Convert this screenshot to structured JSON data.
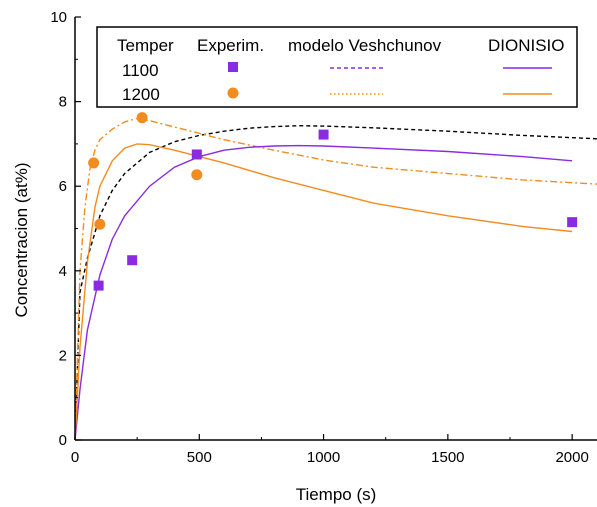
{
  "chart_data": {
    "type": "line",
    "xlabel": "Tiempo (s)",
    "ylabel": "Concentracion (at%)",
    "xlim": [
      0,
      2100
    ],
    "ylim": [
      0,
      10
    ],
    "x_ticks": [
      0,
      500,
      1000,
      1500,
      2000
    ],
    "y_ticks": [
      0,
      2,
      4,
      6,
      8,
      10
    ],
    "legend": {
      "placement": "top",
      "headers": [
        "Temper",
        "Experim.",
        "modelo Veshchunov",
        "DIONISIO"
      ],
      "rows": [
        "1100",
        "1200"
      ]
    },
    "colors": {
      "t1100": "#8a2be2",
      "t1200": "#f28c1e",
      "model_1100_curve": "#000000"
    },
    "series": [
      {
        "name": "1100 Experim.",
        "kind": "scatter",
        "marker": "square",
        "color": "#8a2be2",
        "x": [
          95,
          230,
          490,
          1000,
          2000
        ],
        "y": [
          3.65,
          4.25,
          6.75,
          7.22,
          5.15
        ]
      },
      {
        "name": "1200 Experim.",
        "kind": "scatter",
        "marker": "circle",
        "color": "#f28c1e",
        "x": [
          75,
          100,
          270,
          490
        ],
        "y": [
          6.55,
          5.1,
          7.62,
          6.27
        ]
      },
      {
        "name": "1100 modelo Veshchunov",
        "kind": "line",
        "style": "dashed",
        "color": "#000000",
        "x": [
          0,
          20,
          50,
          100,
          150,
          200,
          300,
          400,
          500,
          600,
          700,
          800,
          900,
          1000,
          1200,
          1500,
          1800,
          2100
        ],
        "y": [
          0.0,
          3.5,
          4.3,
          5.3,
          5.9,
          6.3,
          6.8,
          7.05,
          7.2,
          7.3,
          7.37,
          7.41,
          7.43,
          7.42,
          7.38,
          7.3,
          7.2,
          7.12
        ]
      },
      {
        "name": "1200 modelo Veshchunov",
        "kind": "line",
        "style": "dash-dot",
        "color": "#f28c1e",
        "x": [
          0,
          20,
          40,
          60,
          80,
          100,
          150,
          200,
          250,
          300,
          400,
          500,
          600,
          800,
          1000,
          1200,
          1500,
          1800,
          2100
        ],
        "y": [
          0.0,
          4.0,
          5.5,
          6.4,
          6.85,
          7.1,
          7.35,
          7.52,
          7.6,
          7.55,
          7.4,
          7.25,
          7.1,
          6.85,
          6.62,
          6.45,
          6.3,
          6.15,
          6.05
        ]
      },
      {
        "name": "1100 DIONISIO",
        "kind": "line",
        "style": "solid",
        "color": "#8a2be2",
        "x": [
          0,
          20,
          50,
          100,
          150,
          200,
          300,
          400,
          500,
          600,
          700,
          800,
          900,
          1000,
          1200,
          1500,
          1800,
          2000
        ],
        "y": [
          0.0,
          1.2,
          2.6,
          3.9,
          4.75,
          5.3,
          6.0,
          6.45,
          6.7,
          6.85,
          6.92,
          6.95,
          6.96,
          6.95,
          6.9,
          6.82,
          6.7,
          6.6
        ]
      },
      {
        "name": "1200 DIONISIO",
        "kind": "line",
        "style": "solid",
        "color": "#f28c1e",
        "x": [
          0,
          20,
          50,
          80,
          100,
          150,
          200,
          250,
          300,
          400,
          500,
          600,
          800,
          1000,
          1200,
          1500,
          1800,
          2000
        ],
        "y": [
          0.0,
          2.2,
          4.2,
          5.5,
          6.0,
          6.6,
          6.9,
          7.0,
          6.98,
          6.85,
          6.7,
          6.55,
          6.2,
          5.9,
          5.6,
          5.3,
          5.05,
          4.93
        ]
      }
    ]
  }
}
